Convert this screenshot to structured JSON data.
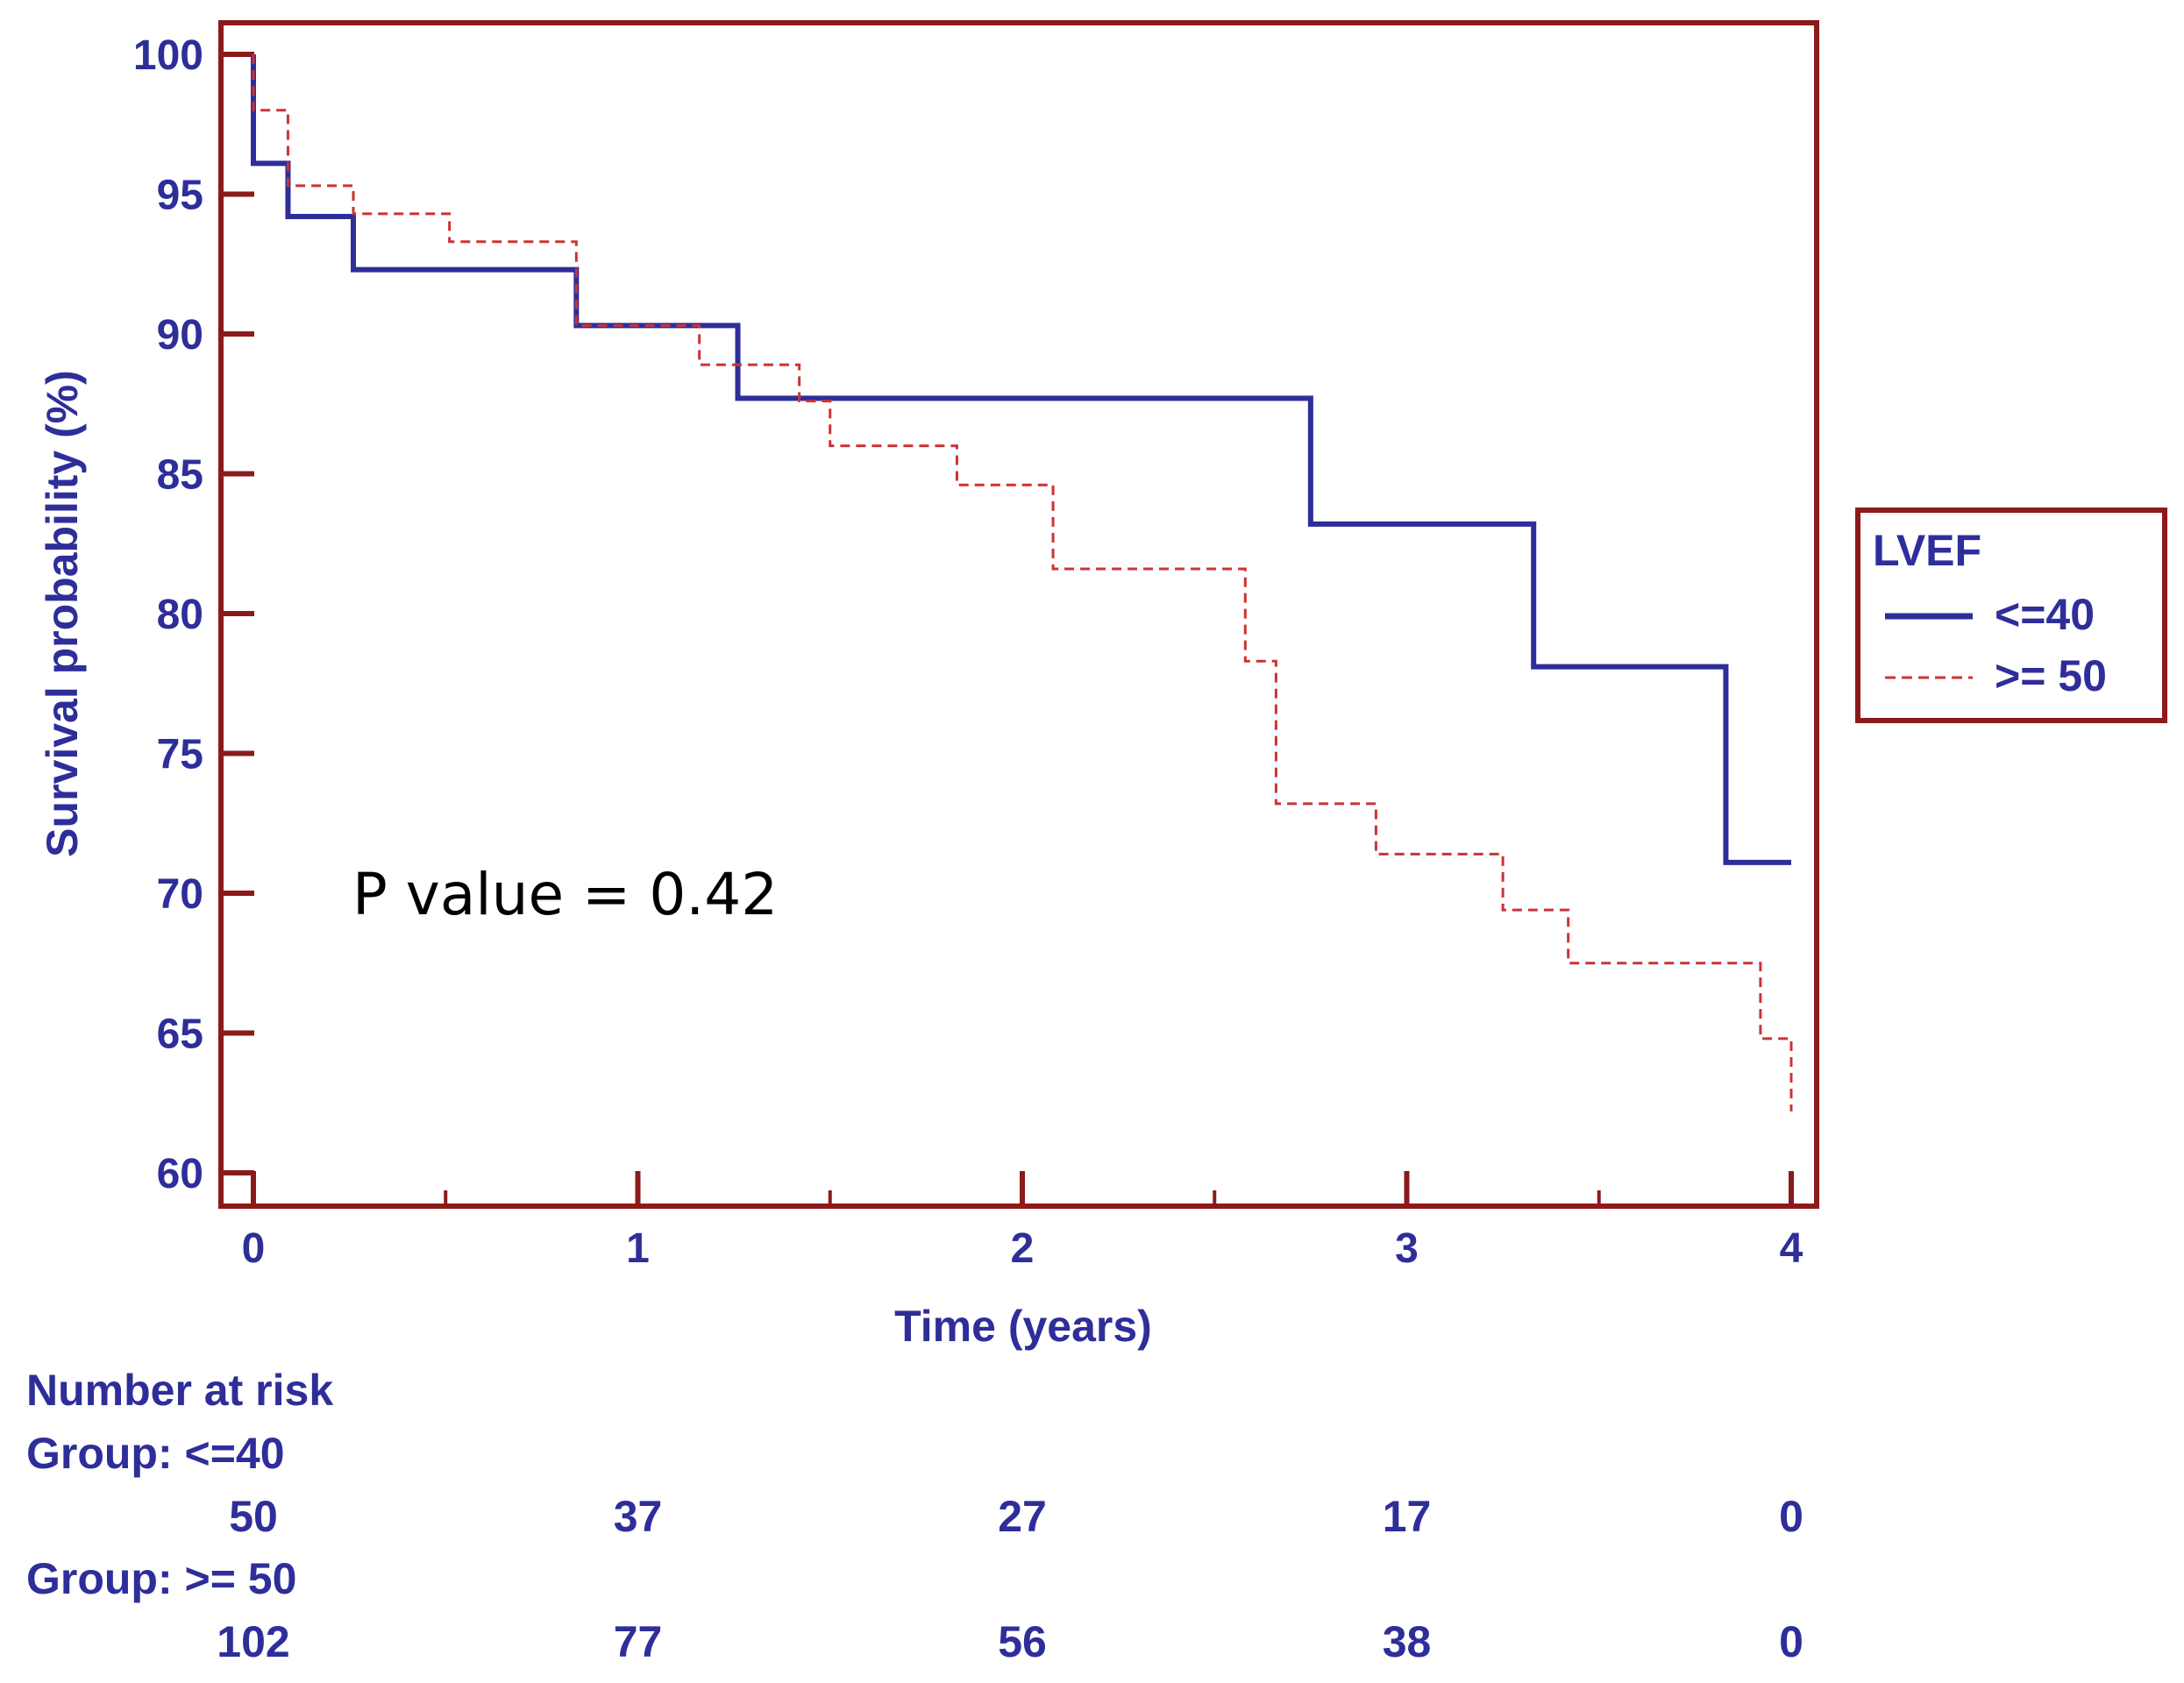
{
  "chart_data": {
    "type": "line",
    "subtype": "kaplan-meier step",
    "xlabel": "Time (years)",
    "ylabel": "Survival probability (%)",
    "xlim": [
      0,
      4
    ],
    "ylim": [
      60,
      100
    ],
    "xticks": [
      0,
      1,
      2,
      3,
      4
    ],
    "yticks": [
      60,
      65,
      70,
      75,
      80,
      85,
      90,
      95,
      100
    ],
    "grid": false,
    "annotation": "P value = 0.42",
    "legend": {
      "title": "LVEF",
      "placement": "right",
      "entries": [
        "<=40",
        ">= 50"
      ]
    },
    "series": [
      {
        "name": "<=40",
        "style": "solid",
        "color": "#2e2e9a",
        "steps": [
          [
            0,
            100
          ],
          [
            0.0,
            96.1
          ],
          [
            0.09,
            94.2
          ],
          [
            0.26,
            92.3
          ],
          [
            0.84,
            90.3
          ],
          [
            1.26,
            87.7
          ],
          [
            2.75,
            83.2
          ],
          [
            3.33,
            78.1
          ],
          [
            3.83,
            71.1
          ]
        ],
        "end_x": 4.0
      },
      {
        "name": ">= 50",
        "style": "dashed",
        "color": "#cc3333",
        "steps": [
          [
            0,
            100
          ],
          [
            0.0,
            98.0
          ],
          [
            0.09,
            95.3
          ],
          [
            0.26,
            94.3
          ],
          [
            0.51,
            93.3
          ],
          [
            0.84,
            90.3
          ],
          [
            1.16,
            88.9
          ],
          [
            1.42,
            87.6
          ],
          [
            1.5,
            86.0
          ],
          [
            1.83,
            84.6
          ],
          [
            2.08,
            81.6
          ],
          [
            2.58,
            78.3
          ],
          [
            2.66,
            73.2
          ],
          [
            2.92,
            71.4
          ],
          [
            3.25,
            69.4
          ],
          [
            3.42,
            67.5
          ],
          [
            3.92,
            64.8
          ],
          [
            4.0,
            62.2
          ]
        ],
        "end_x": 4.0
      }
    ],
    "risk_table": {
      "title": "Number at risk",
      "times": [
        0,
        1,
        2,
        3,
        4
      ],
      "groups": [
        {
          "label": "Group: <=40",
          "counts": [
            "50",
            "37",
            "27",
            "17",
            "0"
          ]
        },
        {
          "label": "Group: >= 50",
          "counts": [
            "102",
            "77",
            "56",
            "38",
            "0"
          ]
        }
      ]
    }
  },
  "colors": {
    "frame": "#8b1a1a",
    "text": "#2e2e9a",
    "series1": "#2e2e9a",
    "series2": "#cc3333"
  }
}
